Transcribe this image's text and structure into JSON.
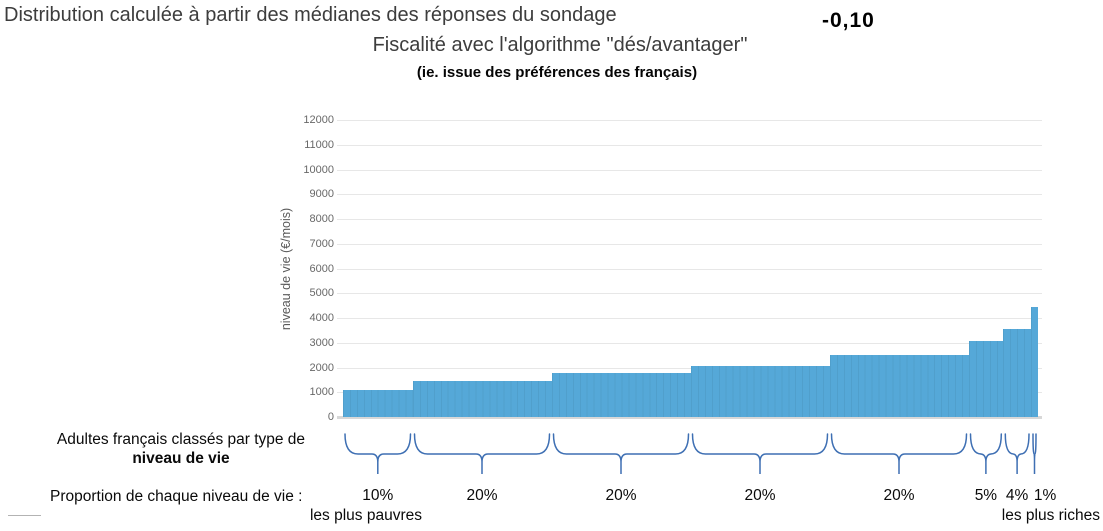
{
  "header": {
    "title": "Distribution calculée à partir des médianes des réponses du sondage",
    "score": "-0,10",
    "subtitle": "Fiscalité avec l'algorithme \"dés/avantager\"",
    "subtitle_note": "(ie. issue des préférences des français)"
  },
  "chart_data": {
    "type": "bar",
    "title": "Fiscalité avec l'algorithme \"dés/avantager\"",
    "subtitle": "(ie. issue des préférences des français)",
    "ylabel": "niveau de vie (€/mois)",
    "ylim": [
      0,
      12000
    ],
    "ytick_step": 1000,
    "grid": true,
    "unit": "€/mois",
    "groups": [
      {
        "label": "10%",
        "share_pct": 10,
        "value": 1100
      },
      {
        "label": "20%",
        "share_pct": 20,
        "value": 1450
      },
      {
        "label": "20%",
        "share_pct": 20,
        "value": 1780
      },
      {
        "label": "20%",
        "share_pct": 20,
        "value": 2080
      },
      {
        "label": "20%",
        "share_pct": 20,
        "value": 2520
      },
      {
        "label": "5%",
        "share_pct": 5,
        "value": 3060
      },
      {
        "label": "4%",
        "share_pct": 4,
        "value": 3560
      },
      {
        "label": "1%",
        "share_pct": 1,
        "value": 4440
      }
    ],
    "colors": {
      "bar": "#55a8d8",
      "brace": "#3e6fb3",
      "gridline": "#e7e7e7",
      "baseline": "#d8d8d8"
    }
  },
  "annotations": {
    "x_class_line1": "Adultes français classés par type de",
    "x_class_line2": "niveau de vie",
    "proportion_label": "Proportion de chaque niveau de vie :",
    "poorest": "les plus pauvres",
    "richest": "les plus riches"
  }
}
